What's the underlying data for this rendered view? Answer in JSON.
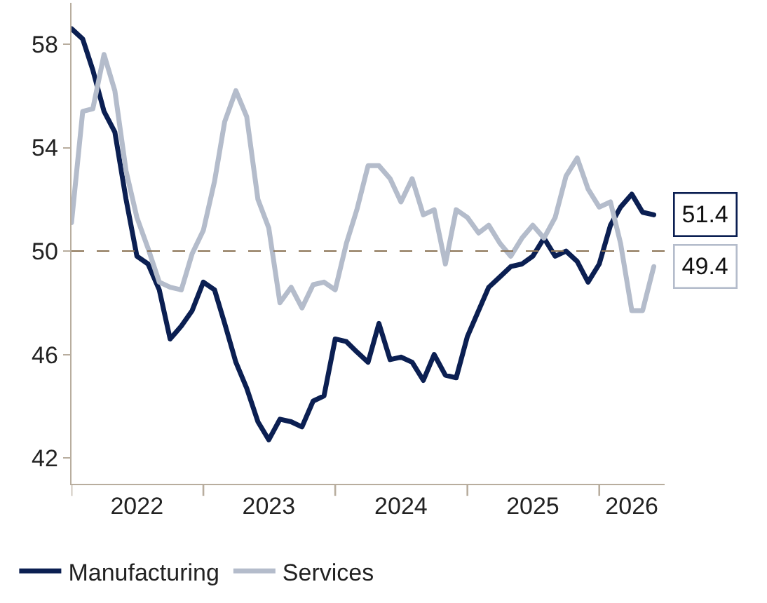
{
  "chart_data": {
    "type": "line",
    "x": [
      "2022-01",
      "2022-02",
      "2022-03",
      "2022-04",
      "2022-05",
      "2022-06",
      "2022-07",
      "2022-08",
      "2022-09",
      "2022-10",
      "2022-11",
      "2022-12",
      "2023-01",
      "2023-02",
      "2023-03",
      "2023-04",
      "2023-05",
      "2023-06",
      "2023-07",
      "2023-08",
      "2023-09",
      "2023-10",
      "2023-11",
      "2023-12",
      "2024-01",
      "2024-02",
      "2024-03",
      "2024-04",
      "2024-05",
      "2024-06",
      "2024-07",
      "2024-08",
      "2024-09",
      "2024-10",
      "2024-11",
      "2024-12",
      "2025-01",
      "2025-02",
      "2025-03",
      "2025-04",
      "2025-05",
      "2025-06",
      "2025-07",
      "2025-08",
      "2025-09",
      "2025-10",
      "2025-11",
      "2025-12",
      "2026-01",
      "2026-02",
      "2026-03",
      "2026-04",
      "2026-05",
      "2026-06"
    ],
    "series": [
      {
        "name": "Manufacturing",
        "color": "#0b1f52",
        "values": [
          58.6,
          58.2,
          57.0,
          55.4,
          54.6,
          52.0,
          49.8,
          49.5,
          48.5,
          46.6,
          47.1,
          47.7,
          48.8,
          48.5,
          47.2,
          45.7,
          44.7,
          43.4,
          42.7,
          43.5,
          43.4,
          43.2,
          44.2,
          44.4,
          46.6,
          46.5,
          46.1,
          45.7,
          47.2,
          45.8,
          45.9,
          45.7,
          45.0,
          46.0,
          45.2,
          45.1,
          46.7,
          47.7,
          48.6,
          49.0,
          49.4,
          49.5,
          49.8,
          50.5,
          49.8,
          50.0,
          49.6,
          48.8,
          49.5,
          51.0,
          51.7,
          52.2,
          51.5,
          51.4
        ]
      },
      {
        "name": "Services",
        "color": "#b4bccb",
        "values": [
          51.1,
          55.4,
          55.5,
          57.6,
          56.2,
          53.1,
          51.3,
          50.1,
          48.8,
          48.6,
          48.5,
          49.9,
          50.8,
          52.7,
          55.0,
          56.2,
          55.2,
          52.0,
          50.9,
          48.0,
          48.6,
          47.8,
          48.7,
          48.8,
          48.5,
          50.3,
          51.6,
          53.3,
          53.3,
          52.8,
          51.9,
          52.8,
          51.4,
          51.6,
          49.5,
          51.6,
          51.3,
          50.7,
          51.0,
          50.3,
          49.8,
          50.5,
          51.0,
          50.5,
          51.3,
          52.9,
          53.6,
          52.4,
          51.7,
          51.9,
          50.3,
          47.7,
          47.7,
          49.4
        ]
      }
    ],
    "ylim": [
      41,
      59.6
    ],
    "yticks": [
      42,
      46,
      50,
      54,
      58
    ],
    "xlim": [
      "2022-01",
      "2026-07"
    ],
    "xticks": [
      {
        "value": "2022-01",
        "label": null
      },
      {
        "value": "2022-07",
        "label": "2022"
      },
      {
        "value": "2023-01",
        "label": null
      },
      {
        "value": "2023-07",
        "label": "2023"
      },
      {
        "value": "2024-01",
        "label": null
      },
      {
        "value": "2024-07",
        "label": "2024"
      },
      {
        "value": "2025-01",
        "label": null
      },
      {
        "value": "2025-07",
        "label": "2025"
      },
      {
        "value": "2026-01",
        "label": null
      },
      {
        "value": "2026-04",
        "label": "2026"
      }
    ],
    "ref_lines": [
      {
        "axis": "y",
        "value": 50,
        "color": "#8b7355",
        "line_style": "dashed"
      }
    ],
    "annotations": [
      {
        "text": "51.4",
        "x": "2026-06",
        "y": 51.4
      },
      {
        "text": "49.4",
        "x": "2026-06",
        "y": 49.4
      }
    ],
    "legend": "bottom left",
    "grid": false,
    "marker": "none",
    "line_style": "solid"
  }
}
